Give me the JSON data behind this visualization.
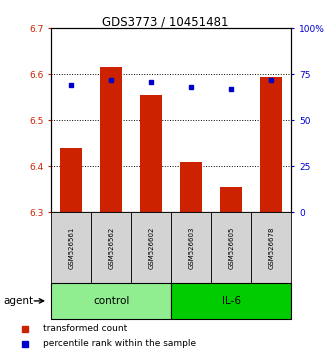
{
  "title": "GDS3773 / 10451481",
  "samples": [
    "GSM526561",
    "GSM526562",
    "GSM526602",
    "GSM526603",
    "GSM526605",
    "GSM526678"
  ],
  "bar_values": [
    6.44,
    6.615,
    6.555,
    6.41,
    6.355,
    6.595
  ],
  "percentile_values": [
    69,
    72,
    71,
    68,
    67,
    72
  ],
  "groups": [
    {
      "label": "control",
      "start": 0,
      "end": 3,
      "color": "#90EE90"
    },
    {
      "label": "IL-6",
      "start": 3,
      "end": 6,
      "color": "#00CC00"
    }
  ],
  "ylim_left": [
    6.3,
    6.7
  ],
  "ylim_right": [
    0,
    100
  ],
  "yticks_left": [
    6.3,
    6.4,
    6.5,
    6.6,
    6.7
  ],
  "yticks_right": [
    0,
    25,
    50,
    75,
    100
  ],
  "ytick_labels_right": [
    "0",
    "25",
    "50",
    "75",
    "100%"
  ],
  "bar_color": "#CC2200",
  "marker_color": "#0000CC",
  "bar_bottom": 6.3,
  "background_color": "#ffffff",
  "agent_label": "agent",
  "legend_items": [
    "transformed count",
    "percentile rank within the sample"
  ]
}
